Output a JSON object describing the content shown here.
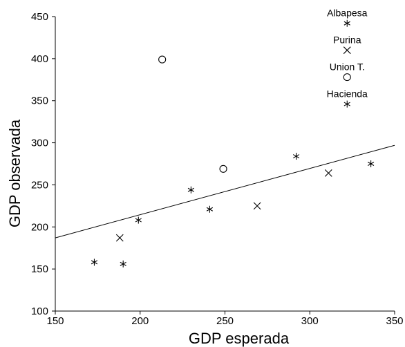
{
  "chart_data": {
    "type": "scatter",
    "title": "",
    "xlabel": "GDP esperada",
    "ylabel": "GDP observada",
    "xlim": [
      150,
      350
    ],
    "ylim": [
      100,
      450
    ],
    "xticks": [
      150,
      200,
      250,
      300,
      350
    ],
    "yticks": [
      100,
      150,
      200,
      250,
      300,
      350,
      400,
      450
    ],
    "grid": false,
    "legend": "none",
    "points": [
      {
        "x": 173,
        "y": 158,
        "marker": "asterisk",
        "label": ""
      },
      {
        "x": 188,
        "y": 187,
        "marker": "cross",
        "label": ""
      },
      {
        "x": 190,
        "y": 156,
        "marker": "asterisk",
        "label": ""
      },
      {
        "x": 199,
        "y": 208,
        "marker": "asterisk",
        "label": ""
      },
      {
        "x": 213,
        "y": 399,
        "marker": "circle",
        "label": ""
      },
      {
        "x": 230,
        "y": 244,
        "marker": "asterisk",
        "label": ""
      },
      {
        "x": 241,
        "y": 221,
        "marker": "asterisk",
        "label": ""
      },
      {
        "x": 249,
        "y": 269,
        "marker": "circle",
        "label": ""
      },
      {
        "x": 269,
        "y": 225,
        "marker": "cross",
        "label": ""
      },
      {
        "x": 292,
        "y": 284,
        "marker": "asterisk",
        "label": ""
      },
      {
        "x": 311,
        "y": 264,
        "marker": "cross",
        "label": ""
      },
      {
        "x": 322,
        "y": 442,
        "marker": "asterisk",
        "label": "Albapesa"
      },
      {
        "x": 322,
        "y": 410,
        "marker": "cross",
        "label": "Purina"
      },
      {
        "x": 322,
        "y": 378,
        "marker": "circle",
        "label": "Union T."
      },
      {
        "x": 322,
        "y": 346,
        "marker": "asterisk",
        "label": "Hacienda"
      },
      {
        "x": 336,
        "y": 275,
        "marker": "asterisk",
        "label": ""
      }
    ],
    "fit_line": {
      "x": [
        150,
        350
      ],
      "y": [
        187,
        297
      ]
    }
  }
}
